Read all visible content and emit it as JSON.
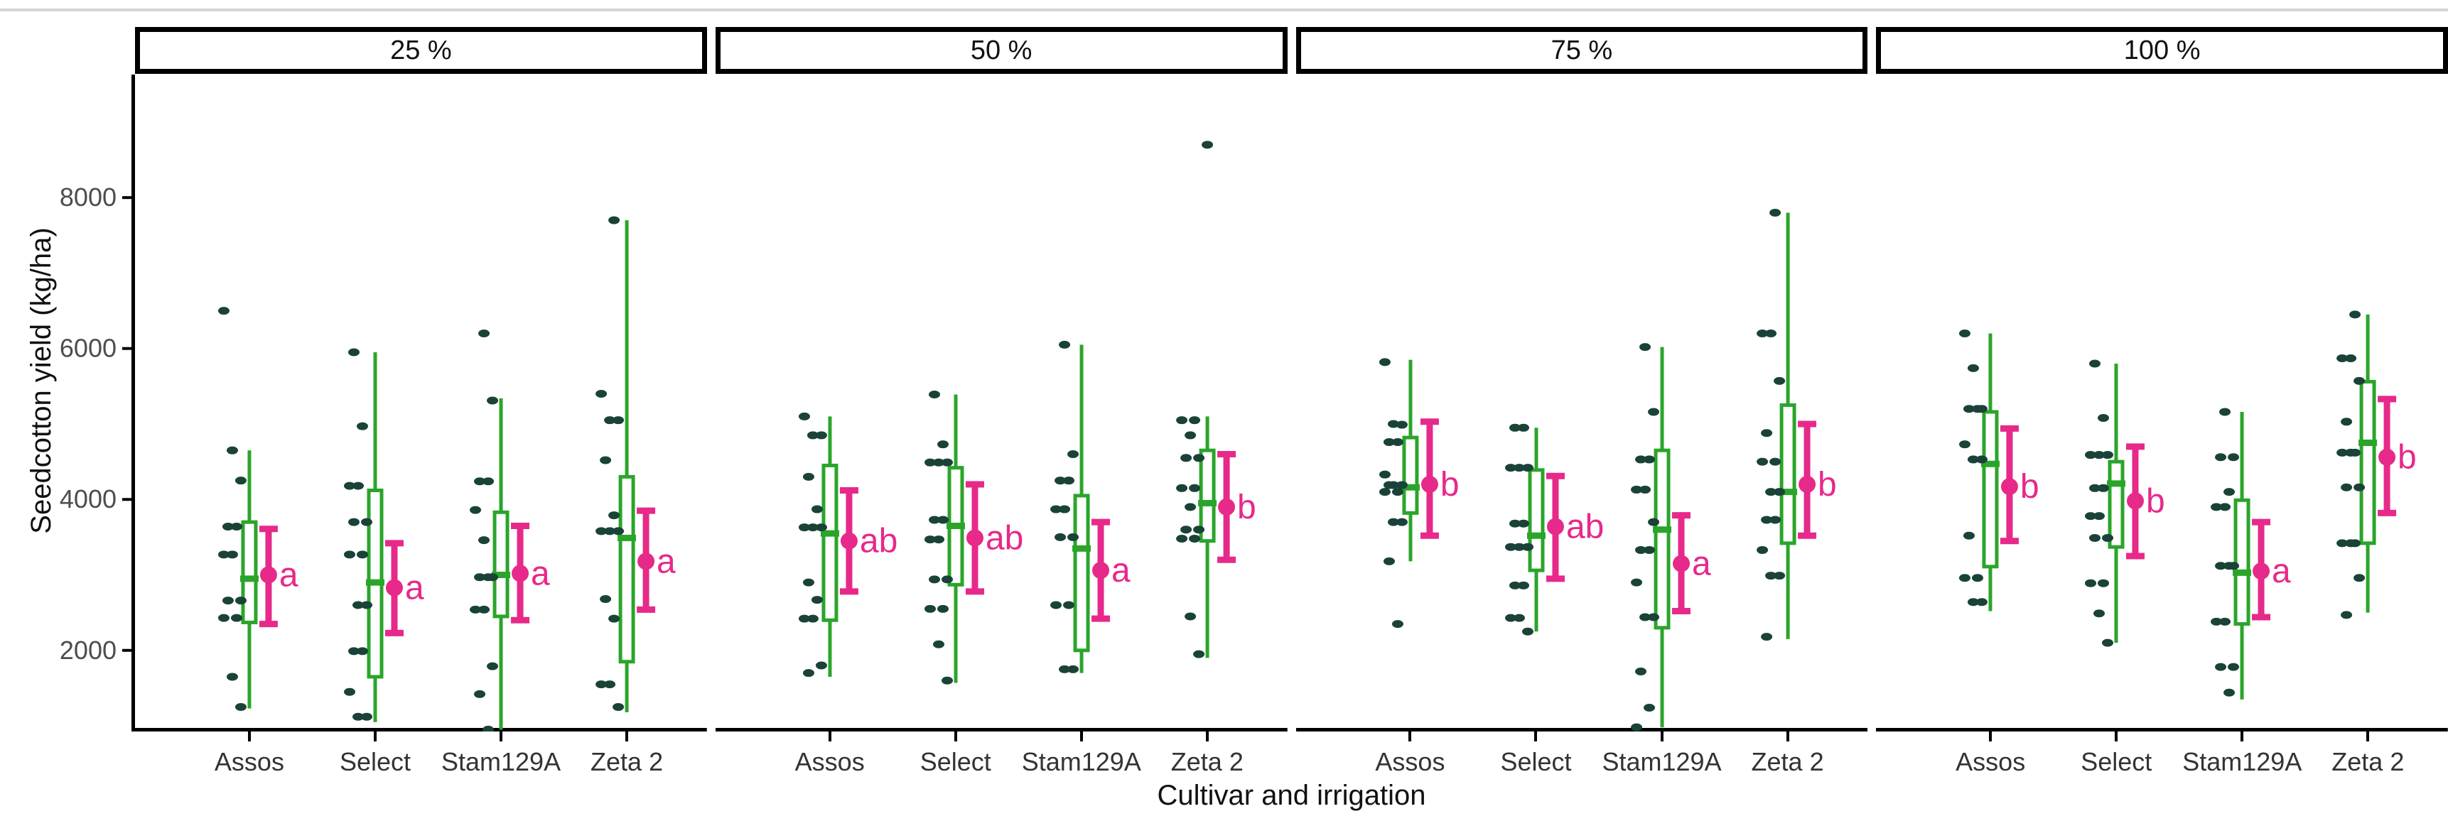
{
  "figure": {
    "top_rule_color": "#d5d5d5",
    "background": "#ffffff"
  },
  "chart_data": {
    "type": "boxplot",
    "subtype": "boxplot+jitter+mean_ci+significance_letters",
    "title": "",
    "xlabel": "Cultivar and irrigation",
    "ylabel": "Seedcotton yield (kg/ha)",
    "y_ticks": [
      2000,
      4000,
      6000,
      8000
    ],
    "y_domain": [
      925,
      9630
    ],
    "grid": "off",
    "legend": "none",
    "categories": [
      "Assos",
      "Select",
      "Stam129A",
      "Zeta 2"
    ],
    "colors": {
      "box_stroke": "#2aa52a",
      "jitter_point": "#1a4238",
      "mean_point": "#e7298a",
      "axis_line": "#000000",
      "tick_label": "#4d4d4d",
      "strip_border": "#000000",
      "strip_text": "#111111",
      "letter_text": "#e7298a"
    },
    "facets": [
      {
        "label": "25 %",
        "groups": [
          {
            "cultivar": "Assos",
            "letter": "a",
            "mean": 3000,
            "ci": [
              2350,
              3610
            ],
            "box": {
              "min": 1230,
              "q1": 2370,
              "median": 2950,
              "q3": 3700,
              "max": 4650
            },
            "outliers": [],
            "points": [
              6500,
              4650,
              4250,
              3640,
              3640,
              3270,
              3270,
              2660,
              2660,
              2430,
              2430,
              1650,
              1250
            ]
          },
          {
            "cultivar": "Select",
            "letter": "a",
            "mean": 2830,
            "ci": [
              2230,
              3420
            ],
            "box": {
              "min": 1050,
              "q1": 1650,
              "median": 2900,
              "q3": 4120,
              "max": 5950
            },
            "outliers": [],
            "points": [
              5950,
              4970,
              4180,
              4180,
              3700,
              3700,
              3270,
              3270,
              2600,
              2600,
              1990,
              1990,
              1450,
              1120,
              1120
            ]
          },
          {
            "cultivar": "Stam129A",
            "letter": "a",
            "mean": 3020,
            "ci": [
              2400,
              3650
            ],
            "box": {
              "min": 950,
              "q1": 2450,
              "median": 3000,
              "q3": 3830,
              "max": 5340
            },
            "outliers": [],
            "points": [
              6200,
              5310,
              4240,
              4240,
              3860,
              3460,
              2970,
              2970,
              2970,
              2540,
              2540,
              1790,
              1420,
              950
            ]
          },
          {
            "cultivar": "Zeta 2",
            "letter": "a",
            "mean": 3180,
            "ci": [
              2540,
              3850
            ],
            "box": {
              "min": 1180,
              "q1": 1850,
              "median": 3490,
              "q3": 4300,
              "max": 7700
            },
            "outliers": [],
            "points": [
              7700,
              5400,
              5050,
              5050,
              4520,
              3790,
              3580,
              3580,
              3580,
              2680,
              2420,
              1550,
              1550,
              1250
            ]
          }
        ]
      },
      {
        "label": "50 %",
        "groups": [
          {
            "cultivar": "Assos",
            "letter": "ab",
            "mean": 3450,
            "ci": [
              2780,
              4120
            ],
            "box": {
              "min": 1650,
              "q1": 2400,
              "median": 3550,
              "q3": 4450,
              "max": 5100
            },
            "outliers": [],
            "points": [
              5100,
              4850,
              4850,
              4300,
              3870,
              3630,
              3630,
              3630,
              2900,
              2670,
              2420,
              2420,
              1800,
              1700
            ]
          },
          {
            "cultivar": "Select",
            "letter": "ab",
            "mean": 3490,
            "ci": [
              2780,
              4200
            ],
            "box": {
              "min": 1570,
              "q1": 2870,
              "median": 3650,
              "q3": 4420,
              "max": 5390
            },
            "outliers": [],
            "points": [
              5390,
              4730,
              4490,
              4490,
              4490,
              3730,
              3730,
              3470,
              3470,
              2940,
              2940,
              2550,
              2550,
              2080,
              1600
            ]
          },
          {
            "cultivar": "Stam129A",
            "letter": "a",
            "mean": 3060,
            "ci": [
              2420,
              3700
            ],
            "box": {
              "min": 1700,
              "q1": 2000,
              "median": 3350,
              "q3": 4050,
              "max": 6050
            },
            "outliers": [],
            "points": [
              6050,
              4600,
              4250,
              4250,
              3870,
              3870,
              3500,
              3500,
              2600,
              2600,
              1750,
              1750
            ]
          },
          {
            "cultivar": "Zeta 2",
            "letter": "b",
            "mean": 3900,
            "ci": [
              3200,
              4600
            ],
            "box": {
              "min": 1900,
              "q1": 3450,
              "median": 3950,
              "q3": 4650,
              "max": 5100
            },
            "outliers": [
              8700
            ],
            "points": [
              5050,
              5050,
              4850,
              4550,
              4550,
              4150,
              4150,
              3900,
              3600,
              3600,
              3480,
              3480,
              2450,
              1950
            ]
          }
        ]
      },
      {
        "label": "75 %",
        "groups": [
          {
            "cultivar": "Assos",
            "letter": "b",
            "mean": 4200,
            "ci": [
              3520,
              5030
            ],
            "box": {
              "min": 3180,
              "q1": 3820,
              "median": 4160,
              "q3": 4820,
              "max": 5850
            },
            "outliers": [],
            "points": [
              5820,
              5000,
              4990,
              4760,
              4760,
              4330,
              4190,
              4190,
              4190,
              4100,
              4100,
              3700,
              3700,
              3180,
              2350
            ]
          },
          {
            "cultivar": "Select",
            "letter": "ab",
            "mean": 3640,
            "ci": [
              2950,
              4310
            ],
            "box": {
              "min": 2250,
              "q1": 3060,
              "median": 3520,
              "q3": 4390,
              "max": 4950
            },
            "outliers": [],
            "points": [
              4950,
              4950,
              4420,
              4420,
              4420,
              3680,
              3680,
              3370,
              3370,
              3370,
              2860,
              2860,
              2430,
              2430,
              2250
            ]
          },
          {
            "cultivar": "Stam129A",
            "letter": "a",
            "mean": 3150,
            "ci": [
              2520,
              3790
            ],
            "box": {
              "min": 980,
              "q1": 2300,
              "median": 3600,
              "q3": 4650,
              "max": 6020
            },
            "outliers": [],
            "points": [
              6020,
              5160,
              4530,
              4530,
              4130,
              4130,
              3700,
              3330,
              3330,
              2900,
              2440,
              2440,
              1720,
              1240,
              980
            ]
          },
          {
            "cultivar": "Zeta 2",
            "letter": "b",
            "mean": 4200,
            "ci": [
              3520,
              5000
            ],
            "box": {
              "min": 2150,
              "q1": 3420,
              "median": 4100,
              "q3": 5250,
              "max": 7800
            },
            "outliers": [],
            "points": [
              7800,
              6200,
              6200,
              5570,
              4880,
              4500,
              4500,
              4100,
              4100,
              3730,
              3730,
              3330,
              2990,
              2990,
              2180
            ]
          }
        ]
      },
      {
        "label": "100 %",
        "groups": [
          {
            "cultivar": "Assos",
            "letter": "b",
            "mean": 4170,
            "ci": [
              3450,
              4940
            ],
            "box": {
              "min": 2520,
              "q1": 3110,
              "median": 4470,
              "q3": 5160,
              "max": 6200
            },
            "outliers": [],
            "points": [
              6200,
              5740,
              5200,
              5200,
              5200,
              4730,
              4530,
              4530,
              3520,
              2960,
              2960,
              2640,
              2640
            ]
          },
          {
            "cultivar": "Select",
            "letter": "b",
            "mean": 3980,
            "ci": [
              3250,
              4700
            ],
            "box": {
              "min": 2100,
              "q1": 3370,
              "median": 4210,
              "q3": 4500,
              "max": 5800
            },
            "outliers": [],
            "points": [
              5800,
              5080,
              4590,
              4590,
              4590,
              4150,
              4150,
              3780,
              3780,
              3490,
              3490,
              2890,
              2890,
              2490,
              2100
            ]
          },
          {
            "cultivar": "Stam129A",
            "letter": "a",
            "mean": 3050,
            "ci": [
              2440,
              3700
            ],
            "box": {
              "min": 1350,
              "q1": 2350,
              "median": 3030,
              "q3": 3990,
              "max": 5160
            },
            "outliers": [],
            "points": [
              5160,
              4560,
              4560,
              4100,
              3900,
              3900,
              3120,
              3120,
              3120,
              2380,
              2380,
              1780,
              1780,
              1440
            ]
          },
          {
            "cultivar": "Zeta 2",
            "letter": "b",
            "mean": 4560,
            "ci": [
              3820,
              5330
            ],
            "box": {
              "min": 2500,
              "q1": 3420,
              "median": 4750,
              "q3": 5560,
              "max": 6450
            },
            "outliers": [],
            "points": [
              6450,
              5870,
              5870,
              5570,
              5030,
              4620,
              4620,
              4620,
              4160,
              4160,
              3420,
              3420,
              3420,
              2960,
              2470
            ]
          }
        ]
      }
    ]
  }
}
